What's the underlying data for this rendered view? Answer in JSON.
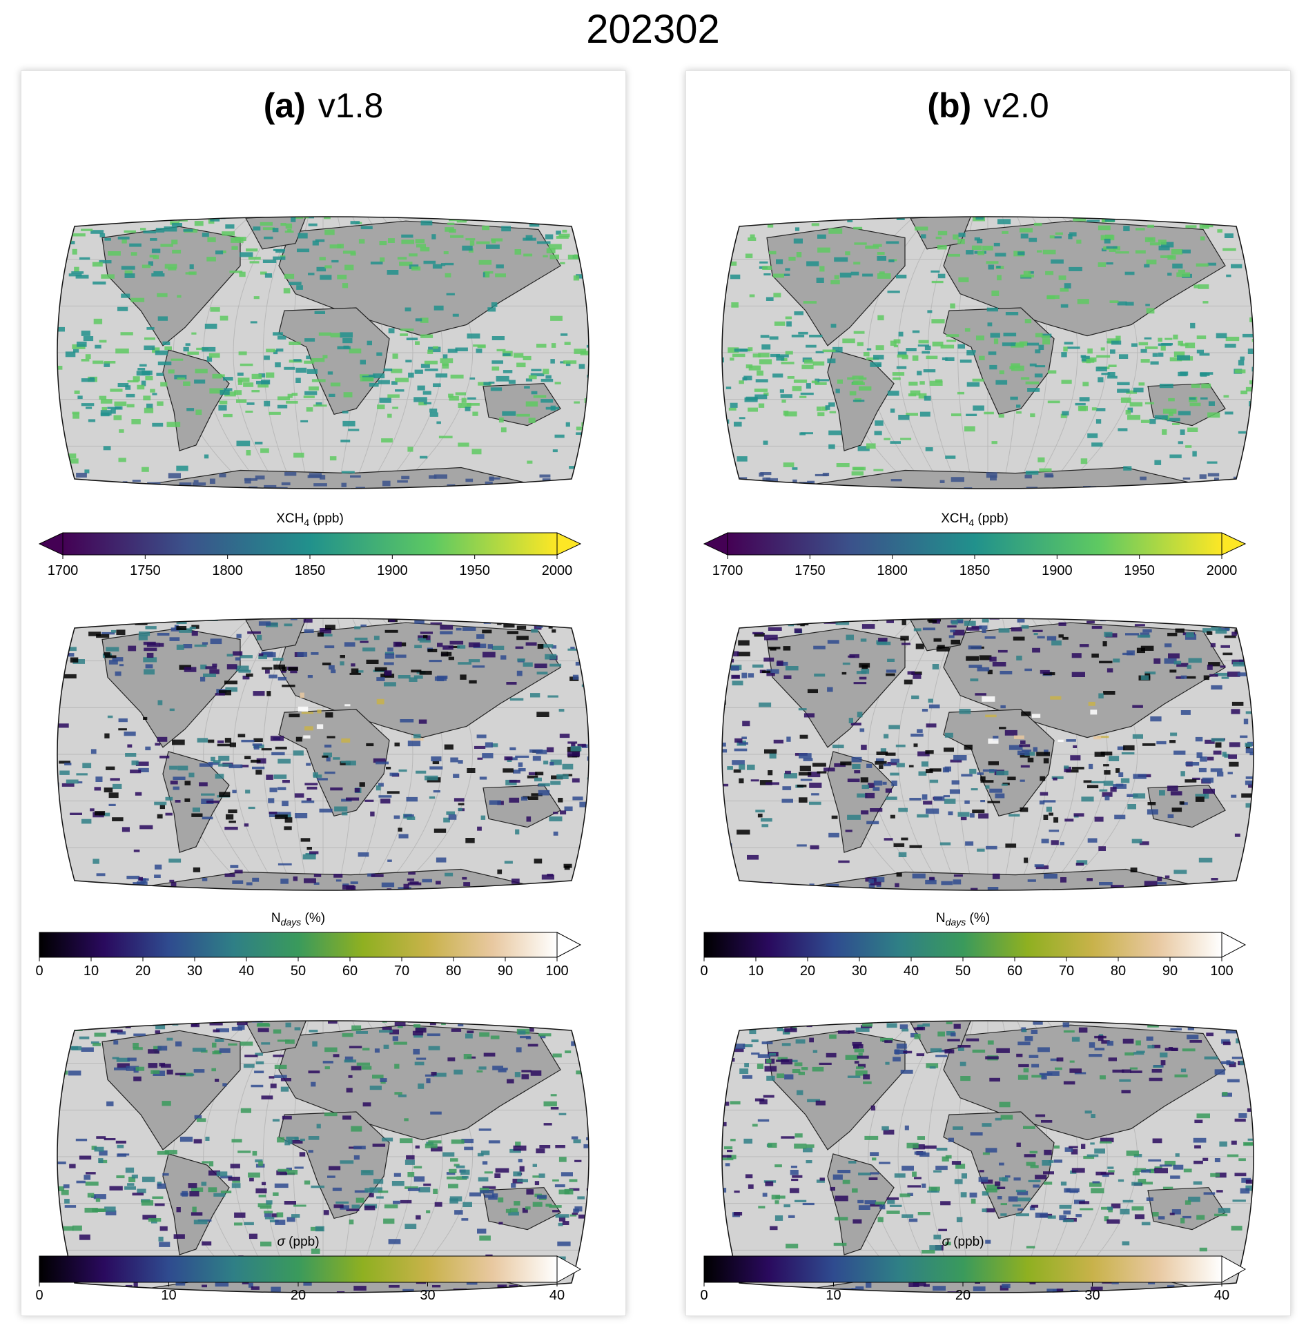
{
  "figure_title": "202302",
  "colors": {
    "ocean": "#d3d3d3",
    "land_nodata": "#a6a6a6",
    "panel_border": "#e4e4e4"
  },
  "colorbars": {
    "xch4": {
      "label_main": "XCH",
      "label_sub": "4",
      "label_rest": " (ppb)",
      "ticks": [
        1700,
        1750,
        1800,
        1850,
        1900,
        1950,
        2000
      ],
      "range": [
        1700,
        2000
      ],
      "colormap": "viridis",
      "extend": "both"
    },
    "ndays": {
      "label_main": "N",
      "label_sub": "days",
      "label_rest": " (%)",
      "ticks": [
        0,
        10,
        20,
        30,
        40,
        50,
        60,
        70,
        80,
        90,
        100
      ],
      "range": [
        0,
        100
      ],
      "colormap": "gist_earth",
      "extend": "max"
    },
    "sigma": {
      "label_main": "σ",
      "label_sub": "",
      "label_rest": " (ppb)",
      "ticks": [
        0,
        10,
        20,
        30,
        40
      ],
      "range": [
        0,
        40
      ],
      "colormap": "gist_earth",
      "extend": "max"
    }
  },
  "panels": [
    {
      "tag": "(a)",
      "version": "v1.8"
    },
    {
      "tag": "(b)",
      "version": "v2.0"
    }
  ],
  "chart_data": [
    {
      "type": "heatmap",
      "panel": "(a)",
      "row": 1,
      "variable": "XCH4 (ppb)",
      "projection": "Robinson",
      "version": "v1.8",
      "date": "202302",
      "value_range": [
        1700,
        2000
      ],
      "grid": true
    },
    {
      "type": "heatmap",
      "panel": "(a)",
      "row": 2,
      "variable": "Ndays (%)",
      "projection": "Robinson",
      "version": "v1.8",
      "date": "202302",
      "value_range": [
        0,
        100
      ],
      "grid": true
    },
    {
      "type": "heatmap",
      "panel": "(a)",
      "row": 3,
      "variable": "σ (ppb)",
      "projection": "Robinson",
      "version": "v1.8",
      "date": "202302",
      "value_range": [
        0,
        40
      ],
      "grid": true
    },
    {
      "type": "heatmap",
      "panel": "(b)",
      "row": 1,
      "variable": "XCH4 (ppb)",
      "projection": "Robinson",
      "version": "v2.0",
      "date": "202302",
      "value_range": [
        1700,
        2000
      ],
      "grid": true
    },
    {
      "type": "heatmap",
      "panel": "(b)",
      "row": 2,
      "variable": "Ndays (%)",
      "projection": "Robinson",
      "version": "v2.0",
      "date": "202302",
      "value_range": [
        0,
        100
      ],
      "grid": true
    },
    {
      "type": "heatmap",
      "panel": "(b)",
      "row": 3,
      "variable": "σ (ppb)",
      "projection": "Robinson",
      "version": "v2.0",
      "date": "202302",
      "value_range": [
        0,
        40
      ],
      "grid": true
    }
  ]
}
